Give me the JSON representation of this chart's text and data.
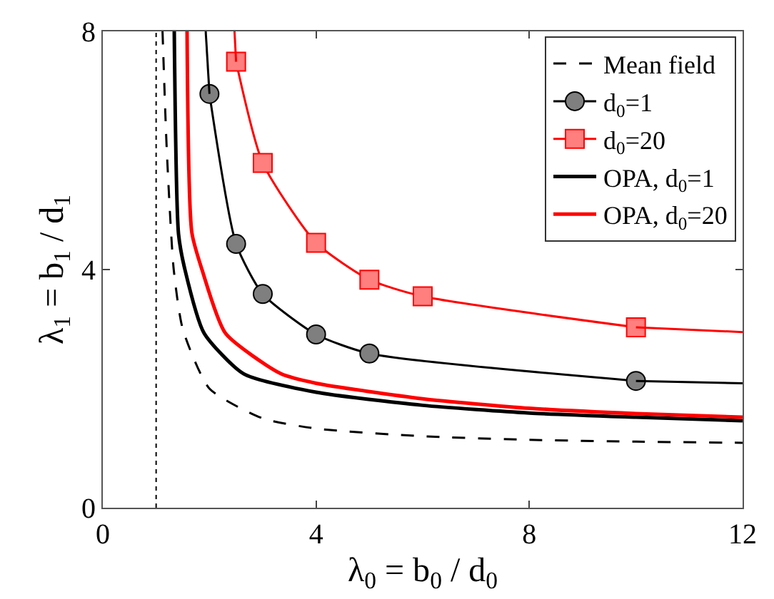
{
  "chart_data": {
    "type": "line",
    "xlabel": "λ$_{0}$ = b$_{0}$ / d$_{0}$",
    "ylabel": "λ$_{1}$ = b$_{1}$ / d$_{1}$",
    "xlim": [
      0,
      12
    ],
    "ylim": [
      0,
      8
    ],
    "xticks": [
      0,
      4,
      8,
      12
    ],
    "yticks": [
      0,
      4,
      8
    ],
    "grid": false,
    "legend": "top right",
    "ref_lines": [
      {
        "axis": "x",
        "value": 1,
        "color": "#000000",
        "line_style": "dotted"
      }
    ],
    "series": [
      {
        "name": "Mean field",
        "color": "#000000",
        "line_style": "dashed",
        "marker": "none",
        "x": [
          1.12,
          1.2,
          1.33,
          1.5,
          2,
          3,
          4,
          6,
          8,
          10,
          12
        ],
        "values": [
          8,
          6,
          4,
          3,
          2,
          1.5,
          1.33,
          1.2,
          1.14,
          1.11,
          1.09
        ]
      },
      {
        "name": "d$_{0}$=1",
        "color": "#000000",
        "line_style": "solid",
        "marker": "circle",
        "x": [
          2,
          2.5,
          3,
          4,
          5,
          10
        ],
        "values": [
          6.95,
          4.43,
          3.59,
          2.91,
          2.59,
          2.13
        ]
      },
      {
        "name": "d$_{0}$=20",
        "color": "#ff0000",
        "line_style": "solid",
        "marker": "square",
        "x": [
          2.5,
          3,
          4,
          5,
          6,
          10
        ],
        "values": [
          7.49,
          5.79,
          4.45,
          3.83,
          3.55,
          3.03
        ]
      },
      {
        "name": "OPA, d$_{0}$=1",
        "color": "#000000",
        "line_style": "solid",
        "marker": "none",
        "x": [
          1.34,
          1.42,
          1.54,
          1.9,
          2.64,
          4,
          6,
          8,
          10,
          12
        ],
        "values": [
          8,
          4.6,
          4.0,
          2.93,
          2.25,
          1.94,
          1.72,
          1.59,
          1.52,
          1.46
        ]
      },
      {
        "name": "OPA, d$_{0}$=20",
        "color": "#ff0000",
        "line_style": "solid",
        "marker": "none",
        "x": [
          1.58,
          1.67,
          1.86,
          2.3,
          3.34,
          4,
          6,
          8,
          10,
          12
        ],
        "values": [
          8,
          4.62,
          4.0,
          2.93,
          2.25,
          2.09,
          1.83,
          1.67,
          1.58,
          1.52
        ]
      },
      {
        "color": "#000000",
        "line_style": "solid",
        "marker": "none",
        "x": [
          1.93,
          2
        ],
        "values": [
          8,
          6.95
        ]
      },
      {
        "color": "#000000",
        "line_style": "solid",
        "marker": "none",
        "x": [
          10,
          12
        ],
        "values": [
          2.13,
          2.09
        ]
      },
      {
        "color": "#ff0000",
        "line_style": "solid",
        "marker": "none",
        "x": [
          2.47,
          2.5
        ],
        "values": [
          8,
          7.49
        ]
      },
      {
        "color": "#ff0000",
        "line_style": "solid",
        "marker": "none",
        "x": [
          10,
          12
        ],
        "values": [
          3.03,
          2.95
        ]
      }
    ]
  }
}
